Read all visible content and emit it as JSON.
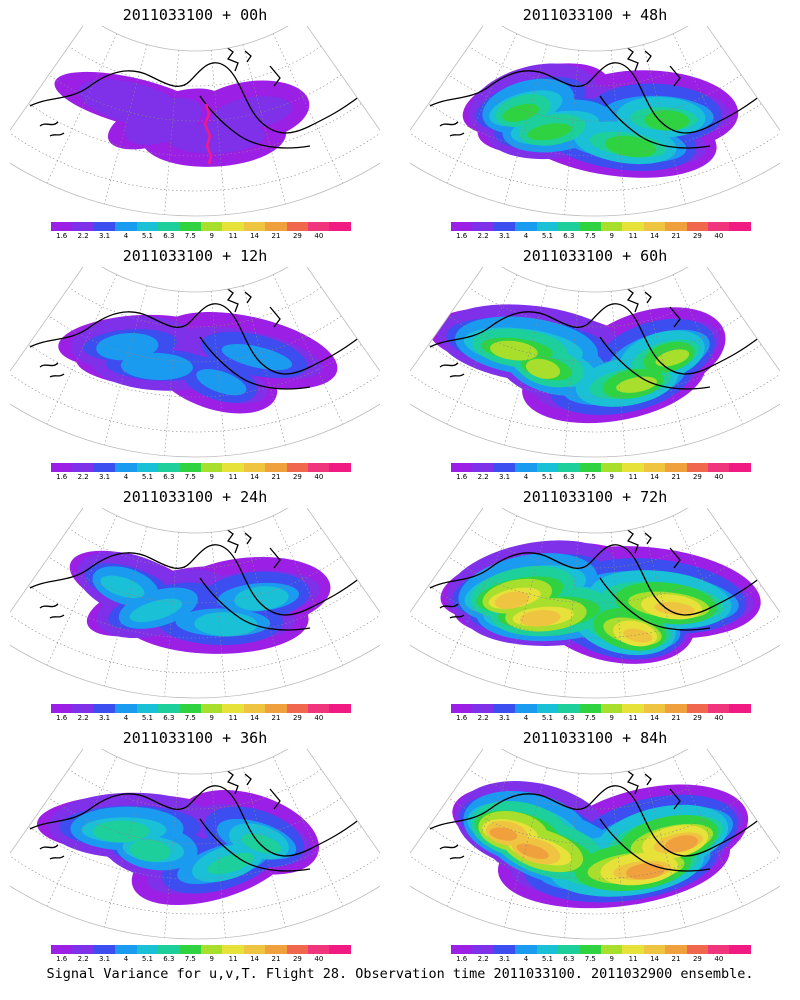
{
  "colorbar": {
    "labels": [
      "1.6",
      "2.2",
      "3.1",
      "4",
      "5.1",
      "6.3",
      "7.5",
      "9",
      "11",
      "14",
      "21",
      "29",
      "40"
    ],
    "colors": [
      "#9c1fe6",
      "#7f30e9",
      "#3c4ef0",
      "#1a9bf0",
      "#19c0d6",
      "#1dcf9a",
      "#2fd341",
      "#a8de2c",
      "#e6e23a",
      "#efc440",
      "#f0a03c",
      "#f0674d",
      "#f0357c",
      "#f11a82"
    ]
  },
  "panels": [
    {
      "title": "2011033100 + 00h",
      "intensity": 0.15,
      "flight_track": true
    },
    {
      "title": "2011033100 + 48h",
      "intensity": 0.6,
      "flight_track": false
    },
    {
      "title": "2011033100 + 12h",
      "intensity": 0.3,
      "flight_track": false
    },
    {
      "title": "2011033100 + 60h",
      "intensity": 0.7,
      "flight_track": false
    },
    {
      "title": "2011033100 + 24h",
      "intensity": 0.4,
      "flight_track": false
    },
    {
      "title": "2011033100 + 72h",
      "intensity": 0.8,
      "flight_track": false
    },
    {
      "title": "2011033100 + 36h",
      "intensity": 0.5,
      "flight_track": false
    },
    {
      "title": "2011033100 + 84h",
      "intensity": 0.9,
      "flight_track": false
    }
  ],
  "footer": "Signal Variance for u,v,T. Flight 28. Observation time 2011033100. 2011032900 ensemble."
}
